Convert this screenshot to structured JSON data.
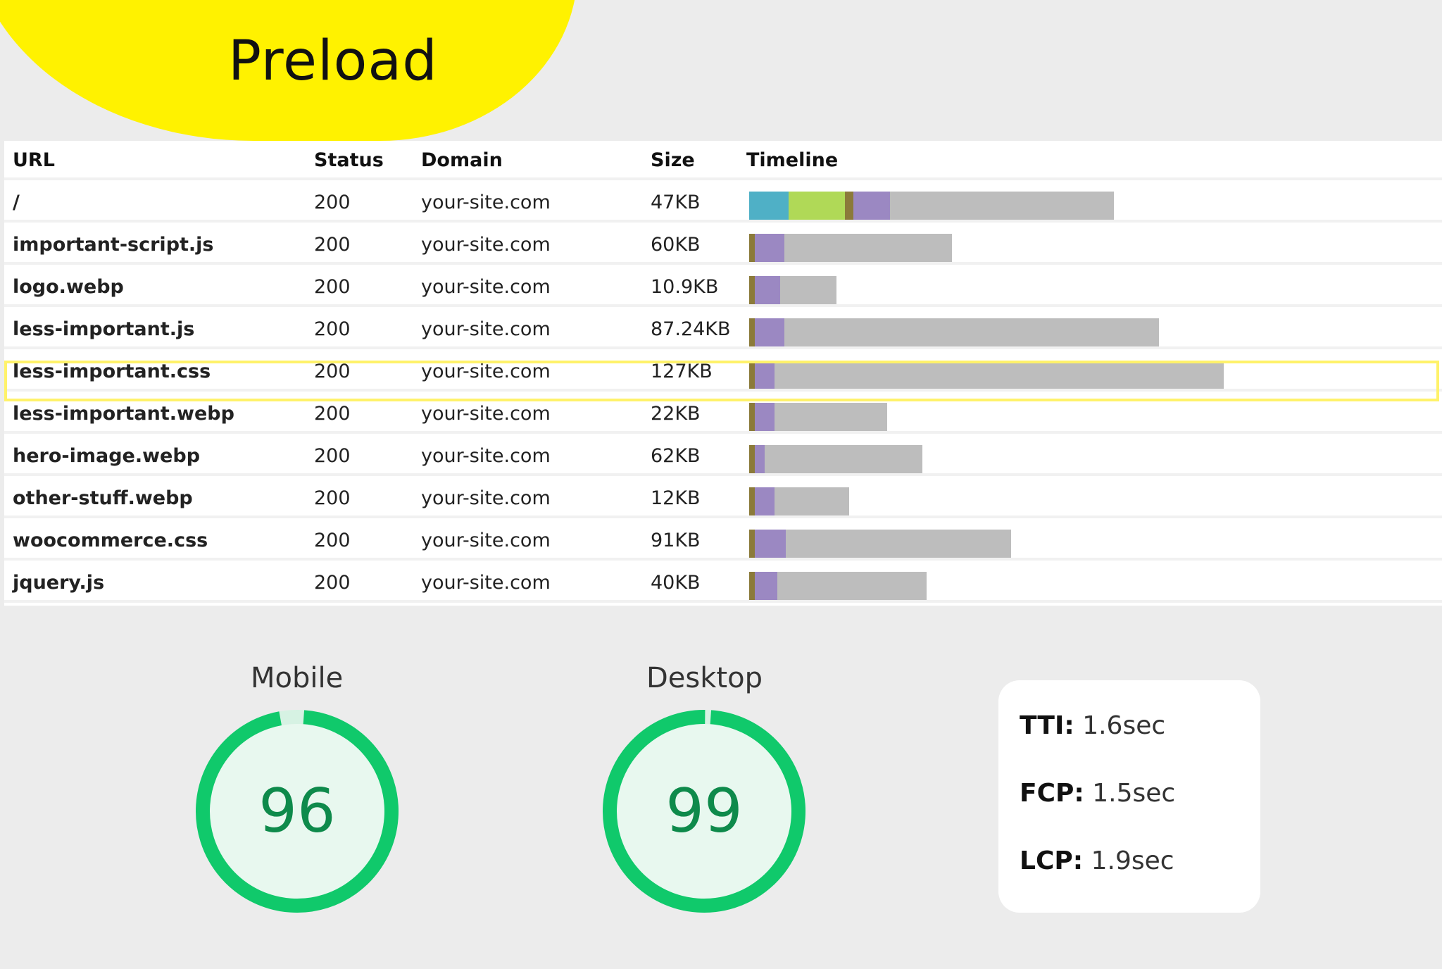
{
  "header": {
    "title": "Preload"
  },
  "table": {
    "columns": [
      "URL",
      "Status",
      "Domain",
      "Size",
      "Timeline"
    ],
    "rows": [
      {
        "url": "/",
        "status": "200",
        "domain": "your-site.com",
        "size": "47KB",
        "timeline": [
          {
            "c": "#4fb0c6",
            "w": 56
          },
          {
            "c": "#b0d957",
            "w": 80
          },
          {
            "c": "#8b7a3a",
            "w": 12
          },
          {
            "c": "#9b88c2",
            "w": 52
          },
          {
            "c": "#bdbdbd",
            "w": 318
          }
        ]
      },
      {
        "url": "important-script.js",
        "status": "200",
        "domain": "your-site.com",
        "size": "60KB",
        "highlighted": true,
        "timeline": [
          {
            "c": "#8b7a3a",
            "w": 8
          },
          {
            "c": "#9b88c2",
            "w": 42
          },
          {
            "c": "#bdbdbd",
            "w": 238
          }
        ]
      },
      {
        "url": "logo.webp",
        "status": "200",
        "domain": "your-site.com",
        "size": "10.9KB",
        "timeline": [
          {
            "c": "#8b7a3a",
            "w": 8
          },
          {
            "c": "#9b88c2",
            "w": 36
          },
          {
            "c": "#bdbdbd",
            "w": 80
          }
        ]
      },
      {
        "url": "less-important.js",
        "status": "200",
        "domain": "your-site.com",
        "size": "87.24KB",
        "timeline": [
          {
            "c": "#8b7a3a",
            "w": 8
          },
          {
            "c": "#9b88c2",
            "w": 42
          },
          {
            "c": "#bdbdbd",
            "w": 532
          }
        ]
      },
      {
        "url": "less-important.css",
        "status": "200",
        "domain": "your-site.com",
        "size": "127KB",
        "timeline": [
          {
            "c": "#8b7a3a",
            "w": 8
          },
          {
            "c": "#9b88c2",
            "w": 28
          },
          {
            "c": "#bdbdbd",
            "w": 638
          }
        ]
      },
      {
        "url": "less-important.webp",
        "status": "200",
        "domain": "your-site.com",
        "size": "22KB",
        "timeline": [
          {
            "c": "#8b7a3a",
            "w": 8
          },
          {
            "c": "#9b88c2",
            "w": 28
          },
          {
            "c": "#bdbdbd",
            "w": 160
          }
        ]
      },
      {
        "url": "hero-image.webp",
        "status": "200",
        "domain": "your-site.com",
        "size": "62KB",
        "timeline": [
          {
            "c": "#8b7a3a",
            "w": 8
          },
          {
            "c": "#9b88c2",
            "w": 14
          },
          {
            "c": "#bdbdbd",
            "w": 224
          }
        ]
      },
      {
        "url": "other-stuff.webp",
        "status": "200",
        "domain": "your-site.com",
        "size": "12KB",
        "timeline": [
          {
            "c": "#8b7a3a",
            "w": 8
          },
          {
            "c": "#9b88c2",
            "w": 28
          },
          {
            "c": "#bdbdbd",
            "w": 106
          }
        ]
      },
      {
        "url": "woocommerce.css",
        "status": "200",
        "domain": "your-site.com",
        "size": "91KB",
        "timeline": [
          {
            "c": "#8b7a3a",
            "w": 8
          },
          {
            "c": "#9b88c2",
            "w": 44
          },
          {
            "c": "#bdbdbd",
            "w": 320
          }
        ]
      },
      {
        "url": "jquery.js",
        "status": "200",
        "domain": "your-site.com",
        "size": "40KB",
        "timeline": [
          {
            "c": "#8b7a3a",
            "w": 8
          },
          {
            "c": "#9b88c2",
            "w": 32
          },
          {
            "c": "#bdbdbd",
            "w": 212
          }
        ]
      }
    ]
  },
  "scores": {
    "mobile": {
      "label": "Mobile",
      "value": "96",
      "fraction": 0.96
    },
    "desktop": {
      "label": "Desktop",
      "value": "99",
      "fraction": 0.99
    },
    "color": "#10c96b",
    "fill": "#e8f8ef"
  },
  "metrics": [
    {
      "name": "TTI:",
      "value": "1.6sec"
    },
    {
      "name": "FCP:",
      "value": "1.5sec"
    },
    {
      "name": "LCP:",
      "value": "1.9sec"
    }
  ]
}
